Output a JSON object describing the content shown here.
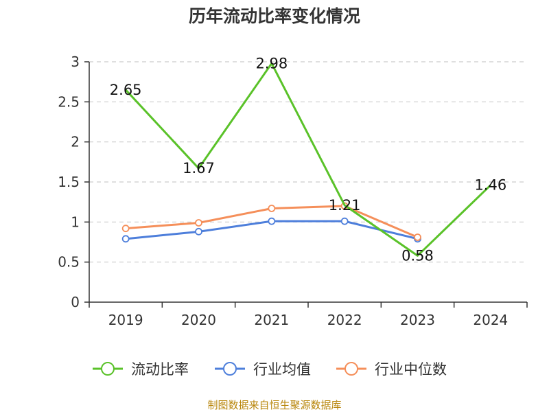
{
  "title": "历年流动比率变化情况",
  "source": "制图数据来自恒生聚源数据库",
  "chart_data": {
    "type": "line",
    "title": "历年流动比率变化情况",
    "categories": [
      "2019",
      "2020",
      "2021",
      "2022",
      "2023",
      "2024"
    ],
    "ylim": [
      0,
      3
    ],
    "yticks": [
      "0",
      "0.5",
      "1",
      "1.5",
      "2",
      "2.5",
      "3"
    ],
    "grid": true,
    "legend_position": "bottom",
    "series": [
      {
        "name": "流动比率",
        "color": "#5ac229",
        "values": [
          2.65,
          1.67,
          2.98,
          1.21,
          0.58,
          1.46
        ],
        "labels": [
          "2.65",
          "1.67",
          "2.98",
          "1.21",
          "0.58",
          "1.46"
        ],
        "markers": false
      },
      {
        "name": "行业均值",
        "color": "#4e7fdb",
        "values": [
          0.79,
          0.88,
          1.01,
          1.01,
          0.79,
          null
        ],
        "markers": true
      },
      {
        "name": "行业中位数",
        "color": "#f58f5a",
        "values": [
          0.92,
          0.99,
          1.17,
          1.2,
          0.81,
          null
        ],
        "markers": true
      }
    ]
  }
}
